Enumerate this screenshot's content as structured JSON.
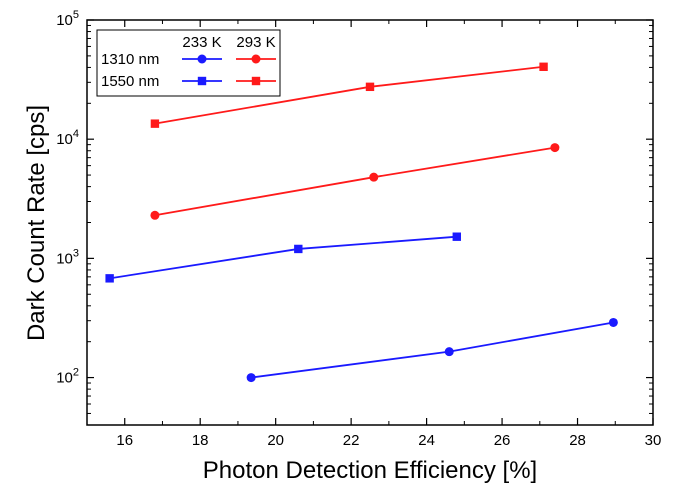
{
  "chart_data": {
    "type": "line",
    "xlabel": "Photon Detection Efficiency [%]",
    "ylabel": "Dark Count Rate [cps]",
    "xlim": [
      15,
      30
    ],
    "ylim": [
      40,
      100000
    ],
    "yscale": "log",
    "grid": false,
    "xticks": [
      "16",
      "18",
      "20",
      "22",
      "24",
      "26",
      "28",
      "30"
    ],
    "yticks": [
      {
        "value": 100,
        "base": "10",
        "exp": "2"
      },
      {
        "value": 1000,
        "base": "10",
        "exp": "3"
      },
      {
        "value": 10000,
        "base": "10",
        "exp": "4"
      },
      {
        "value": 100000,
        "base": "10",
        "exp": "5"
      }
    ],
    "legend": {
      "placement": "top-left",
      "columns": [
        "233 K",
        "293 K"
      ],
      "rows": [
        "1310 nm",
        "1550 nm"
      ]
    },
    "series": [
      {
        "wavelength": "1310 nm",
        "temperature": "233 K",
        "color": "#1a1aff",
        "marker": "circle",
        "x": [
          19.35,
          24.6,
          28.95
        ],
        "y": [
          100,
          165,
          290
        ]
      },
      {
        "wavelength": "1550 nm",
        "temperature": "233 K",
        "color": "#1a1aff",
        "marker": "square",
        "x": [
          15.6,
          20.6,
          24.8
        ],
        "y": [
          680,
          1200,
          1520
        ]
      },
      {
        "wavelength": "1310 nm",
        "temperature": "293 K",
        "color": "#ff1a1a",
        "marker": "circle",
        "x": [
          16.8,
          22.6,
          27.4
        ],
        "y": [
          2300,
          4800,
          8500
        ]
      },
      {
        "wavelength": "1550 nm",
        "temperature": "293 K",
        "color": "#ff1a1a",
        "marker": "square",
        "x": [
          16.8,
          22.5,
          27.1
        ],
        "y": [
          13500,
          27500,
          40500
        ]
      }
    ]
  }
}
